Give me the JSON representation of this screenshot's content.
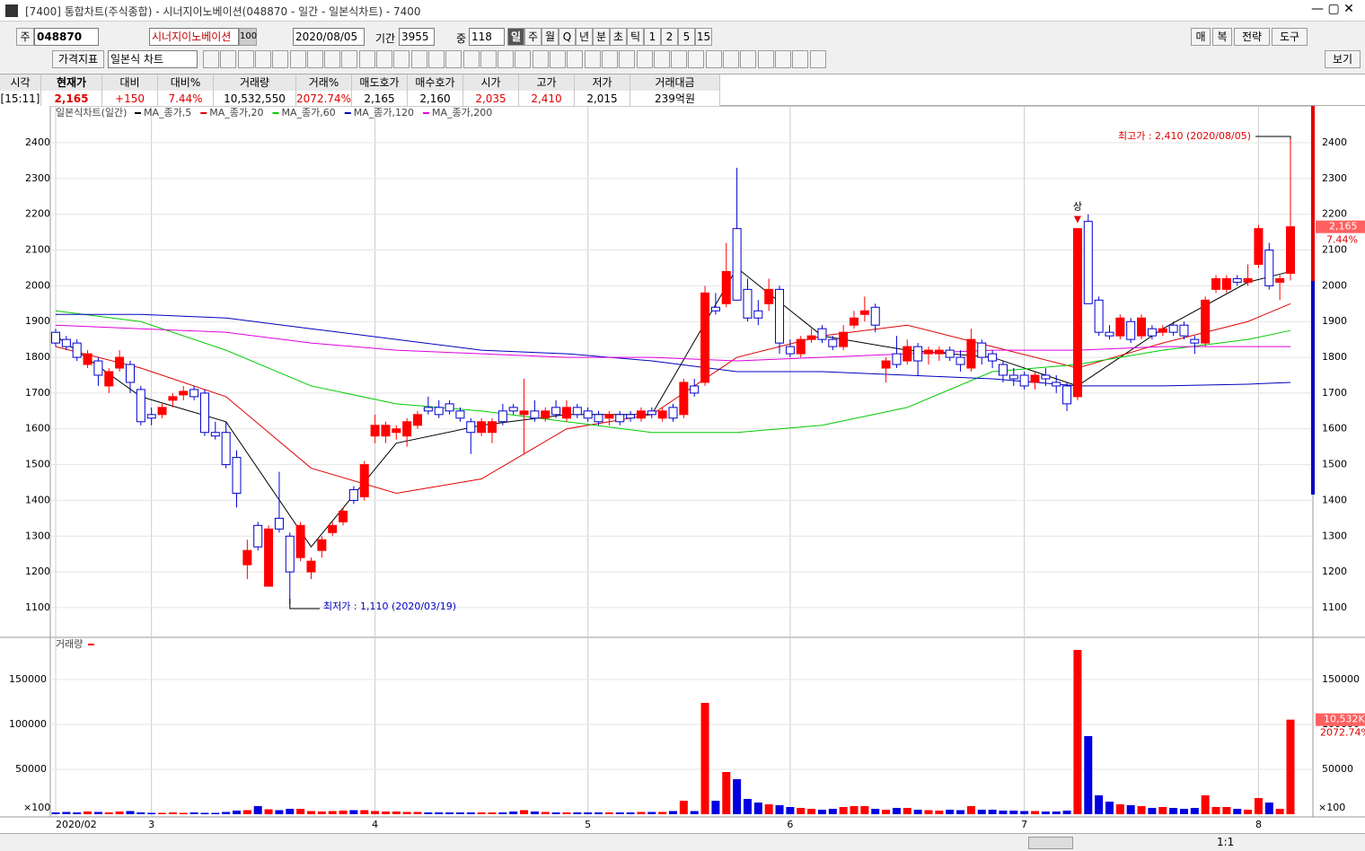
{
  "window": {
    "title": "[7400] 통합차트(주식종합) - 시너지이노베이션(048870 - 일간 - 일본식차트) - 7400"
  },
  "toolbar": {
    "market": "주",
    "code": "048870",
    "name": "시너지이노베이션",
    "count": "100",
    "date": "2020/08/05",
    "period_label": "기간",
    "period": "3955",
    "mid_label": "중",
    "mid": "118",
    "intervals": [
      "일",
      "주",
      "월",
      "Q",
      "년",
      "분",
      "초",
      "틱",
      "1",
      "2",
      "5",
      "15"
    ],
    "right": [
      "매",
      "복",
      "전략",
      "도구"
    ],
    "indicator": "가격지표",
    "chart_style": "일본식 차트",
    "view": "보기"
  },
  "quote": {
    "headers": [
      "시각",
      "현재가",
      "대비",
      "대비%",
      "거래량",
      "거래%",
      "매도호가",
      "매수호가",
      "시가",
      "고가",
      "저가",
      "거래대금"
    ],
    "values": [
      "[15:11]",
      "2,165",
      "+150",
      "7.44%",
      "10,532,550",
      "2072.74%",
      "2,165",
      "2,160",
      "2,035",
      "2,410",
      "2,015",
      "239억원"
    ]
  },
  "chart_data": {
    "type": "candlestick",
    "title": "일본식차트(일간)",
    "categories": [
      "2020/02",
      null,
      null,
      null,
      null,
      null,
      null,
      null,
      null,
      "3",
      null,
      null,
      null,
      null,
      null,
      null,
      null,
      null,
      null,
      null,
      null,
      null,
      null,
      null,
      null,
      null,
      null,
      null,
      null,
      null,
      "4",
      null,
      null,
      null,
      null,
      null,
      null,
      null,
      null,
      null,
      null,
      null,
      null,
      null,
      null,
      null,
      null,
      null,
      null,
      null,
      "5",
      null,
      null,
      null,
      null,
      null,
      null,
      null,
      null,
      null,
      null,
      null,
      null,
      null,
      null,
      null,
      null,
      null,
      null,
      "6",
      null,
      null,
      null,
      null,
      null,
      null,
      null,
      null,
      null,
      null,
      null,
      null,
      null,
      null,
      null,
      null,
      null,
      null,
      null,
      null,
      null,
      "7",
      null,
      null,
      null,
      null,
      null,
      null,
      null,
      null,
      null,
      null,
      null,
      null,
      null,
      null,
      null,
      null,
      null,
      null,
      null,
      null,
      null,
      "8",
      null,
      null,
      null
    ],
    "candles": [
      [
        1870,
        1880,
        1830,
        1840
      ],
      [
        1850,
        1860,
        1820,
        1830
      ],
      [
        1840,
        1850,
        1790,
        1800
      ],
      [
        1780,
        1820,
        1770,
        1810
      ],
      [
        1790,
        1800,
        1720,
        1750
      ],
      [
        1720,
        1770,
        1700,
        1760
      ],
      [
        1770,
        1820,
        1760,
        1800
      ],
      [
        1780,
        1790,
        1700,
        1730
      ],
      [
        1710,
        1720,
        1610,
        1620
      ],
      [
        1640,
        1660,
        1610,
        1630
      ],
      [
        1640,
        1670,
        1630,
        1660
      ],
      [
        1680,
        1700,
        1660,
        1690
      ],
      [
        1695,
        1720,
        1680,
        1705
      ],
      [
        1710,
        1720,
        1680,
        1690
      ],
      [
        1700,
        1710,
        1580,
        1590
      ],
      [
        1590,
        1620,
        1570,
        1580
      ],
      [
        1590,
        1620,
        1490,
        1500
      ],
      [
        1520,
        1540,
        1380,
        1420
      ],
      [
        1220,
        1290,
        1180,
        1260
      ],
      [
        1330,
        1340,
        1260,
        1270
      ],
      [
        1160,
        1330,
        1160,
        1320
      ],
      [
        1350,
        1480,
        1310,
        1320
      ],
      [
        1300,
        1310,
        1110,
        1200
      ],
      [
        1240,
        1340,
        1230,
        1330
      ],
      [
        1200,
        1240,
        1180,
        1230
      ],
      [
        1260,
        1300,
        1240,
        1290
      ],
      [
        1310,
        1340,
        1300,
        1330
      ],
      [
        1340,
        1380,
        1330,
        1370
      ],
      [
        1430,
        1440,
        1390,
        1400
      ],
      [
        1410,
        1510,
        1400,
        1500
      ],
      [
        1580,
        1640,
        1560,
        1610
      ],
      [
        1580,
        1620,
        1560,
        1610
      ],
      [
        1590,
        1610,
        1570,
        1600
      ],
      [
        1580,
        1630,
        1550,
        1620
      ],
      [
        1610,
        1650,
        1600,
        1640
      ],
      [
        1660,
        1690,
        1640,
        1650
      ],
      [
        1660,
        1680,
        1630,
        1640
      ],
      [
        1670,
        1680,
        1640,
        1650
      ],
      [
        1650,
        1660,
        1620,
        1630
      ],
      [
        1620,
        1630,
        1530,
        1590
      ],
      [
        1590,
        1630,
        1580,
        1620
      ],
      [
        1590,
        1630,
        1560,
        1620
      ],
      [
        1650,
        1670,
        1610,
        1620
      ],
      [
        1660,
        1670,
        1640,
        1650
      ],
      [
        1640,
        1740,
        1530,
        1650
      ],
      [
        1650,
        1680,
        1620,
        1630
      ],
      [
        1630,
        1660,
        1620,
        1650
      ],
      [
        1660,
        1680,
        1630,
        1640
      ],
      [
        1630,
        1680,
        1620,
        1660
      ],
      [
        1660,
        1670,
        1630,
        1640
      ],
      [
        1650,
        1660,
        1620,
        1630
      ],
      [
        1640,
        1650,
        1610,
        1620
      ],
      [
        1630,
        1650,
        1610,
        1640
      ],
      [
        1640,
        1650,
        1610,
        1620
      ],
      [
        1640,
        1650,
        1620,
        1630
      ],
      [
        1630,
        1660,
        1620,
        1650
      ],
      [
        1650,
        1660,
        1630,
        1640
      ],
      [
        1630,
        1660,
        1620,
        1650
      ],
      [
        1660,
        1670,
        1620,
        1630
      ],
      [
        1640,
        1740,
        1630,
        1730
      ],
      [
        1720,
        1740,
        1690,
        1700
      ],
      [
        1730,
        2000,
        1720,
        1980
      ],
      [
        1940,
        1980,
        1920,
        1930
      ],
      [
        1950,
        2120,
        1940,
        2040
      ],
      [
        2160,
        2330,
        1960,
        1960
      ],
      [
        1990,
        2020,
        1900,
        1910
      ],
      [
        1930,
        1960,
        1890,
        1910
      ],
      [
        1950,
        2020,
        1930,
        1990
      ],
      [
        1990,
        2000,
        1810,
        1840
      ],
      [
        1830,
        1850,
        1800,
        1810
      ],
      [
        1810,
        1860,
        1800,
        1850
      ],
      [
        1850,
        1880,
        1840,
        1860
      ],
      [
        1880,
        1890,
        1840,
        1850
      ],
      [
        1850,
        1860,
        1820,
        1830
      ],
      [
        1830,
        1890,
        1820,
        1870
      ],
      [
        1890,
        1930,
        1880,
        1910
      ],
      [
        1920,
        1970,
        1900,
        1930
      ],
      [
        1940,
        1950,
        1870,
        1890
      ],
      [
        1770,
        1800,
        1730,
        1790
      ],
      [
        1810,
        1860,
        1770,
        1780
      ],
      [
        1790,
        1850,
        1780,
        1830
      ],
      [
        1830,
        1840,
        1750,
        1790
      ],
      [
        1810,
        1830,
        1780,
        1820
      ],
      [
        1810,
        1830,
        1790,
        1820
      ],
      [
        1820,
        1830,
        1790,
        1800
      ],
      [
        1800,
        1820,
        1760,
        1780
      ],
      [
        1770,
        1880,
        1760,
        1850
      ],
      [
        1840,
        1850,
        1780,
        1800
      ],
      [
        1810,
        1820,
        1770,
        1790
      ],
      [
        1780,
        1790,
        1730,
        1750
      ],
      [
        1750,
        1770,
        1720,
        1740
      ],
      [
        1750,
        1760,
        1710,
        1720
      ],
      [
        1730,
        1760,
        1710,
        1750
      ],
      [
        1750,
        1770,
        1720,
        1740
      ],
      [
        1730,
        1750,
        1700,
        1720
      ],
      [
        1720,
        1730,
        1650,
        1670
      ],
      [
        1690,
        2160,
        1680,
        2160
      ],
      [
        2180,
        2200,
        1950,
        1950
      ],
      [
        1960,
        1970,
        1860,
        1870
      ],
      [
        1870,
        1890,
        1850,
        1860
      ],
      [
        1860,
        1920,
        1850,
        1910
      ],
      [
        1900,
        1910,
        1840,
        1850
      ],
      [
        1860,
        1920,
        1850,
        1910
      ],
      [
        1880,
        1890,
        1850,
        1860
      ],
      [
        1870,
        1890,
        1860,
        1880
      ],
      [
        1890,
        1900,
        1860,
        1870
      ],
      [
        1890,
        1900,
        1850,
        1860
      ],
      [
        1850,
        1860,
        1810,
        1840
      ],
      [
        1840,
        1970,
        1830,
        1960
      ],
      [
        1990,
        2030,
        1980,
        2020
      ],
      [
        1990,
        2030,
        1980,
        2020
      ],
      [
        2020,
        2030,
        2000,
        2010
      ],
      [
        2010,
        2060,
        2000,
        2020
      ],
      [
        2060,
        2170,
        2050,
        2160
      ],
      [
        2100,
        2120,
        1990,
        2000
      ],
      [
        2010,
        2030,
        1960,
        2020
      ],
      [
        2035,
        2410,
        2015,
        2165
      ]
    ],
    "ylim": [
      1017,
      2503
    ],
    "yticks": [
      1100,
      1200,
      1300,
      1400,
      1500,
      1600,
      1700,
      1800,
      1900,
      2000,
      2100,
      2200,
      2300,
      2400
    ],
    "ma_x": [
      0,
      8,
      16,
      24,
      32,
      40,
      48,
      56,
      64,
      72,
      80,
      88,
      96,
      104,
      112,
      116
    ],
    "ma": [
      {
        "name": "MA_종가,5",
        "color": "#000000",
        "values": [
          1860,
          1690,
          1620,
          1270,
          1560,
          1610,
          1640,
          1640,
          2050,
          1860,
          1820,
          1800,
          1720,
          1880,
          2010,
          2040
        ]
      },
      {
        "name": "MA_종가,20",
        "color": "#e00000",
        "values": [
          1830,
          1770,
          1690,
          1490,
          1420,
          1460,
          1600,
          1640,
          1800,
          1860,
          1890,
          1830,
          1770,
          1840,
          1900,
          1950
        ]
      },
      {
        "name": "MA_종가,60",
        "color": "#00cc00",
        "values": [
          1930,
          1900,
          1820,
          1720,
          1670,
          1650,
          1620,
          1590,
          1590,
          1610,
          1660,
          1760,
          1780,
          1820,
          1850,
          1875
        ]
      },
      {
        "name": "MA_종가,120",
        "color": "#0000c0",
        "values": [
          1920,
          1920,
          1910,
          1880,
          1850,
          1820,
          1810,
          1790,
          1760,
          1760,
          1750,
          1740,
          1720,
          1720,
          1725,
          1730
        ]
      },
      {
        "name": "MA_종가,200",
        "color": "#e000e0",
        "values": [
          1890,
          1880,
          1870,
          1840,
          1820,
          1810,
          1800,
          1800,
          1790,
          1800,
          1810,
          1820,
          1820,
          1830,
          1830,
          1830
        ]
      }
    ],
    "high_label": "최고가 : 2,410 (2020/08/05)",
    "low_label": "최저가 : 1,110 (2020/03/19)",
    "limit_up_label": "상",
    "last_price_label": "2,165",
    "last_change_label": "7.44%",
    "volume": {
      "title": "거래량",
      "unit": "×100",
      "ylim": [
        0,
        195000
      ],
      "yticks": [
        50000,
        100000,
        150000
      ],
      "last_label": "10,532K",
      "last_ratio_label": "2072.74%",
      "values": [
        2000,
        2500,
        2000,
        3000,
        2500,
        2000,
        3000,
        3500,
        2000,
        1500,
        1500,
        2000,
        1500,
        2000,
        1500,
        1500,
        2500,
        4000,
        4500,
        9000,
        5500,
        4500,
        6000,
        6000,
        3500,
        3000,
        3500,
        4000,
        4500,
        4500,
        3500,
        3000,
        3000,
        2500,
        2500,
        2000,
        2000,
        2000,
        2000,
        2000,
        2000,
        2000,
        2000,
        3000,
        4500,
        3000,
        2500,
        2000,
        2000,
        2000,
        2000,
        2000,
        2000,
        2000,
        2000,
        2500,
        2500,
        2500,
        3500,
        15000,
        3500,
        124000,
        15000,
        47000,
        39000,
        17000,
        13000,
        11000,
        10000,
        8000,
        7000,
        6000,
        5000,
        6000,
        8000,
        9000,
        9000,
        6000,
        5000,
        7000,
        7000,
        5000,
        4500,
        4000,
        5000,
        4500,
        9000,
        5000,
        5000,
        4000,
        4000,
        3500,
        3500,
        3000,
        3000,
        4000,
        183000,
        87000,
        21000,
        14000,
        11000,
        10000,
        9000,
        7000,
        8000,
        7000,
        6000,
        7000,
        21000,
        8000,
        8000,
        6000,
        5000,
        18000,
        13000,
        6000,
        105325
      ]
    }
  },
  "footer": {
    "zoom": "1:1"
  }
}
